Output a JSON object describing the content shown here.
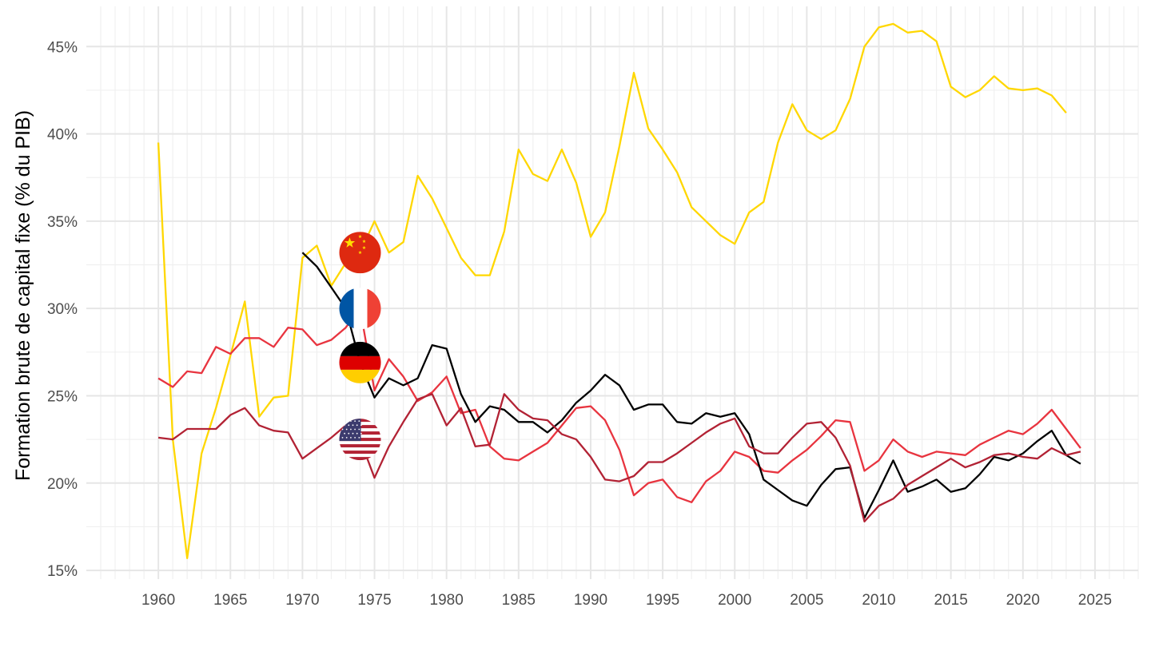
{
  "chart_data": {
    "type": "line",
    "title": "",
    "xlabel": "",
    "ylabel": "Formation brute de capital fixe (% du PIB)",
    "xlim": [
      1955,
      2028
    ],
    "ylim": [
      14.5,
      47.3
    ],
    "x_ticks": [
      1960,
      1965,
      1970,
      1975,
      1980,
      1985,
      1990,
      1995,
      2000,
      2005,
      2010,
      2015,
      2020,
      2025
    ],
    "x_tick_labels": [
      "1960",
      "1965",
      "1970",
      "1975",
      "1980",
      "1985",
      "1990",
      "1995",
      "2000",
      "2005",
      "2010",
      "2015",
      "2020",
      "2025"
    ],
    "y_ticks": [
      15,
      20,
      25,
      30,
      35,
      40,
      45
    ],
    "y_tick_labels": [
      "15%",
      "20%",
      "25%",
      "30%",
      "35%",
      "40%",
      "45%"
    ],
    "grid": true,
    "legend": "flags placed at x=1974",
    "flag_x": 1974,
    "series": [
      {
        "name": "Chine",
        "flag": "china",
        "color": "#FFD700",
        "flag_y": 33.2,
        "x": [
          1960,
          1961,
          1962,
          1963,
          1964,
          1965,
          1966,
          1967,
          1968,
          1969,
          1970,
          1971,
          1972,
          1973,
          1974,
          1975,
          1976,
          1977,
          1978,
          1979,
          1980,
          1981,
          1982,
          1983,
          1984,
          1985,
          1986,
          1987,
          1988,
          1989,
          1990,
          1991,
          1992,
          1993,
          1994,
          1995,
          1996,
          1997,
          1998,
          1999,
          2000,
          2001,
          2002,
          2003,
          2004,
          2005,
          2006,
          2007,
          2008,
          2009,
          2010,
          2011,
          2012,
          2013,
          2014,
          2015,
          2016,
          2017,
          2018,
          2019,
          2020,
          2021,
          2022,
          2023
        ],
        "values": [
          39.5,
          22.5,
          15.7,
          21.7,
          24.3,
          27.3,
          30.4,
          23.8,
          24.9,
          25.0,
          32.9,
          33.6,
          31.3,
          32.6,
          33.2,
          35.0,
          33.2,
          33.8,
          37.6,
          36.3,
          34.6,
          32.9,
          31.9,
          31.9,
          34.4,
          39.1,
          37.7,
          37.3,
          39.1,
          37.2,
          34.1,
          35.5,
          39.3,
          43.5,
          40.3,
          39.1,
          37.8,
          35.8,
          35.0,
          34.2,
          33.7,
          35.5,
          36.1,
          39.5,
          41.7,
          40.2,
          39.7,
          40.2,
          42.0,
          45.0,
          46.1,
          46.3,
          45.8,
          45.9,
          45.3,
          42.7,
          42.1,
          42.5,
          43.3,
          42.6,
          42.5,
          42.6,
          42.2,
          41.2
        ]
      },
      {
        "name": "France",
        "flag": "france",
        "color": "#E8343F",
        "flag_y": 30.0,
        "x": [
          1960,
          1961,
          1962,
          1963,
          1964,
          1965,
          1966,
          1967,
          1968,
          1969,
          1970,
          1971,
          1972,
          1973,
          1974,
          1975,
          1976,
          1977,
          1978,
          1979,
          1980,
          1981,
          1982,
          1983,
          1984,
          1985,
          1986,
          1987,
          1988,
          1989,
          1990,
          1991,
          1992,
          1993,
          1994,
          1995,
          1996,
          1997,
          1998,
          1999,
          2000,
          2001,
          2002,
          2003,
          2004,
          2005,
          2006,
          2007,
          2008,
          2009,
          2010,
          2011,
          2012,
          2013,
          2014,
          2015,
          2016,
          2017,
          2018,
          2019,
          2020,
          2021,
          2022,
          2023,
          2024
        ],
        "values": [
          26.0,
          25.5,
          26.4,
          26.3,
          27.8,
          27.4,
          28.3,
          28.3,
          27.8,
          28.9,
          28.8,
          27.9,
          28.2,
          28.9,
          30.0,
          25.3,
          27.1,
          26.1,
          24.7,
          25.2,
          26.1,
          24.0,
          24.2,
          22.1,
          21.4,
          21.3,
          21.8,
          22.3,
          23.3,
          24.3,
          24.4,
          23.6,
          21.9,
          19.3,
          20.0,
          20.2,
          19.2,
          18.9,
          20.1,
          20.7,
          21.8,
          21.5,
          20.7,
          20.6,
          21.3,
          21.9,
          22.7,
          23.6,
          23.5,
          20.7,
          21.3,
          22.5,
          21.8,
          21.5,
          21.8,
          21.7,
          21.6,
          22.2,
          22.6,
          23.0,
          22.8,
          23.4,
          24.2,
          23.1,
          22.0
        ]
      },
      {
        "name": "Allemagne",
        "flag": "germany",
        "color": "#000000",
        "flag_y": 26.9,
        "x": [
          1970,
          1971,
          1972,
          1973,
          1974,
          1975,
          1976,
          1977,
          1978,
          1979,
          1980,
          1981,
          1982,
          1983,
          1984,
          1985,
          1986,
          1987,
          1988,
          1989,
          1990,
          1991,
          1992,
          1993,
          1994,
          1995,
          1996,
          1997,
          1998,
          1999,
          2000,
          2001,
          2002,
          2003,
          2004,
          2005,
          2006,
          2007,
          2008,
          2009,
          2010,
          2011,
          2012,
          2013,
          2014,
          2015,
          2016,
          2017,
          2018,
          2019,
          2020,
          2021,
          2022,
          2023,
          2024
        ],
        "values": [
          33.2,
          32.4,
          31.2,
          30.0,
          26.9,
          24.9,
          26.0,
          25.6,
          26.0,
          27.9,
          27.7,
          25.1,
          23.5,
          24.4,
          24.2,
          23.5,
          23.5,
          22.9,
          23.6,
          24.6,
          25.3,
          26.2,
          25.6,
          24.2,
          24.5,
          24.5,
          23.5,
          23.4,
          24.0,
          23.8,
          24.0,
          22.8,
          20.2,
          19.6,
          19.0,
          18.7,
          19.9,
          20.8,
          20.9,
          18.0,
          19.6,
          21.3,
          19.5,
          19.8,
          20.2,
          19.5,
          19.7,
          20.5,
          21.5,
          21.3,
          21.7,
          22.4,
          23.0,
          21.6,
          21.1
        ]
      },
      {
        "name": "États-Unis",
        "flag": "usa",
        "color": "#B22234",
        "flag_y": 22.5,
        "x": [
          1960,
          1961,
          1962,
          1963,
          1964,
          1965,
          1966,
          1967,
          1968,
          1969,
          1970,
          1971,
          1972,
          1973,
          1974,
          1975,
          1976,
          1977,
          1978,
          1979,
          1980,
          1981,
          1982,
          1983,
          1984,
          1985,
          1986,
          1987,
          1988,
          1989,
          1990,
          1991,
          1992,
          1993,
          1994,
          1995,
          1996,
          1997,
          1998,
          1999,
          2000,
          2001,
          2002,
          2003,
          2004,
          2005,
          2006,
          2007,
          2008,
          2009,
          2010,
          2011,
          2012,
          2013,
          2014,
          2015,
          2016,
          2017,
          2018,
          2019,
          2020,
          2021,
          2022,
          2023,
          2024
        ],
        "values": [
          22.6,
          22.5,
          23.1,
          23.1,
          23.1,
          23.9,
          24.3,
          23.3,
          23.0,
          22.9,
          21.4,
          22.0,
          22.6,
          23.3,
          22.5,
          20.3,
          22.1,
          23.5,
          24.8,
          25.1,
          23.3,
          24.3,
          22.1,
          22.2,
          25.1,
          24.2,
          23.7,
          23.6,
          22.8,
          22.5,
          21.5,
          20.2,
          20.1,
          20.4,
          21.2,
          21.2,
          21.7,
          22.3,
          22.9,
          23.4,
          23.7,
          22.1,
          21.7,
          21.7,
          22.6,
          23.4,
          23.5,
          22.6,
          21.0,
          17.8,
          18.7,
          19.1,
          19.9,
          20.4,
          20.9,
          21.4,
          20.9,
          21.2,
          21.6,
          21.7,
          21.5,
          21.4,
          22.0,
          21.6,
          21.8
        ]
      }
    ]
  }
}
